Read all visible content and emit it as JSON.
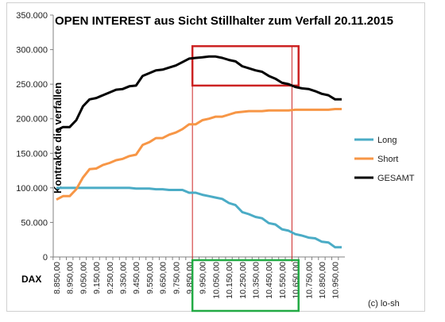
{
  "chart_data": {
    "type": "line",
    "title": "OPEN INTEREST aus Sicht Stillhalter zum Verfall 20.11.2015",
    "ylabel": "Kontrakte  die verfallen",
    "xlabel": "DAX",
    "credit": "(c) lo-sh",
    "ylim": [
      0,
      350000
    ],
    "y_ticks": [
      "0",
      "50.000",
      "100.000",
      "150.000",
      "200.000",
      "250.000",
      "300.000",
      "350.000"
    ],
    "y_tick_values": [
      0,
      50000,
      100000,
      150000,
      200000,
      250000,
      300000,
      350000
    ],
    "x": [
      8850,
      8900,
      8950,
      9000,
      9050,
      9100,
      9150,
      9200,
      9250,
      9300,
      9350,
      9400,
      9450,
      9500,
      9550,
      9600,
      9650,
      9700,
      9750,
      9800,
      9850,
      9900,
      9950,
      10000,
      10050,
      10100,
      10150,
      10200,
      10250,
      10300,
      10350,
      10400,
      10450,
      10500,
      10550,
      10600,
      10650,
      10700,
      10750,
      10800,
      10850,
      10900,
      10950,
      11000
    ],
    "x_tick_labels": [
      "8.850,00",
      "8.950,00",
      "9.050,00",
      "9.150,00",
      "9.250,00",
      "9.350,00",
      "9.450,00",
      "9.550,00",
      "9.650,00",
      "9.750,00",
      "9.850,00",
      "9.950,00",
      "10.050,00",
      "10.150,00",
      "10.250,00",
      "10.350,00",
      "10.450,00",
      "10.550,00",
      "10.650,00",
      "10.750,00",
      "10.850,00",
      "10.950,00"
    ],
    "legend_position": "right",
    "grid": false,
    "series": [
      {
        "name": "Long",
        "color": "#4bacc6",
        "values": [
          100000,
          100000,
          100000,
          100000,
          100000,
          100000,
          100000,
          100000,
          100000,
          100000,
          100000,
          100000,
          99000,
          99000,
          99000,
          98000,
          98000,
          97000,
          97000,
          97000,
          93000,
          93000,
          90000,
          88000,
          86000,
          84000,
          78000,
          75000,
          65000,
          62000,
          58000,
          56000,
          49000,
          47000,
          40000,
          38000,
          33000,
          31000,
          28000,
          27000,
          22000,
          21000,
          14000,
          14000
        ]
      },
      {
        "name": "Short",
        "color": "#f79646",
        "values": [
          83000,
          88000,
          88000,
          98000,
          115000,
          127000,
          128000,
          133000,
          136000,
          140000,
          142000,
          146000,
          148000,
          162000,
          166000,
          172000,
          172000,
          177000,
          180000,
          185000,
          192000,
          192000,
          198000,
          200000,
          203000,
          203000,
          206000,
          209000,
          210000,
          211000,
          211000,
          211000,
          212000,
          212000,
          212000,
          212000,
          213000,
          213000,
          213000,
          213000,
          213000,
          213000,
          214000,
          214000
        ]
      },
      {
        "name": "GESAMT",
        "color": "#000000",
        "values": [
          183000,
          188000,
          188000,
          198000,
          218000,
          228000,
          230000,
          234000,
          238000,
          242000,
          243000,
          247000,
          248000,
          262000,
          266000,
          270000,
          271000,
          274000,
          277000,
          282000,
          287000,
          288000,
          289000,
          290000,
          290000,
          288000,
          285000,
          283000,
          276000,
          273000,
          270000,
          268000,
          262000,
          258000,
          252000,
          250000,
          246000,
          244000,
          243000,
          240000,
          236000,
          234000,
          228000,
          228000
        ]
      }
    ],
    "highlight_boxes": [
      {
        "color": "#cc2222",
        "x_from": 9900,
        "x_to": 10650,
        "y_from": 248000,
        "y_to": 305000
      },
      {
        "color": "#22aa44",
        "x_from": 9900,
        "x_to": 10650,
        "region": "x-axis labels"
      }
    ],
    "vertical_markers": {
      "color": "#cc2222",
      "x": [
        9900,
        10650
      ]
    }
  }
}
